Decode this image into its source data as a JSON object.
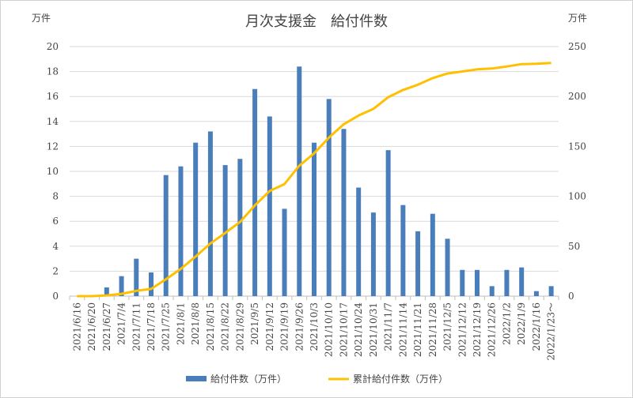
{
  "chart_data": {
    "type": "bar+line",
    "title": "月次支援金　給付件数",
    "left_unit": "万件",
    "right_unit": "万件",
    "categories": [
      "2021/6/16",
      "2021/6/20",
      "2021/6/27",
      "2021/7/4",
      "2021/7/11",
      "2021/7/18",
      "2021/7/25",
      "2021/8/1",
      "2021/8/8",
      "2021/8/15",
      "2021/8/22",
      "2021/8/29",
      "2021/9/5",
      "2021/9/12",
      "2021/9/19",
      "2021/9/26",
      "2021/10/3",
      "2021/10/10",
      "2021/10/17",
      "2021/10/24",
      "2021/10/31",
      "2021/11/7",
      "2021/11/14",
      "2021/11/21",
      "2021/11/28",
      "2021/12/5",
      "2021/12/12",
      "2021/12/19",
      "2021/12/26",
      "2022/1/2",
      "2022/1/9",
      "2022/1/16",
      "2022/1/23～"
    ],
    "series": [
      {
        "name": "給付件数（万件）",
        "type": "bar",
        "axis": "left",
        "color": "#4a7ebb",
        "values": [
          0,
          0,
          0.7,
          1.6,
          3.0,
          1.9,
          9.7,
          10.4,
          12.3,
          13.2,
          10.5,
          11.0,
          16.6,
          14.4,
          7.0,
          18.4,
          12.3,
          15.8,
          13.4,
          8.7,
          6.7,
          11.7,
          7.3,
          5.2,
          6.6,
          4.6,
          2.1,
          2.1,
          0.8,
          2.1,
          2.3,
          0.4,
          0.8
        ]
      },
      {
        "name": "累計給付件数（万件）",
        "type": "line",
        "axis": "right",
        "color": "#ffc000",
        "values": [
          0,
          0,
          0.7,
          2.3,
          5.3,
          7.2,
          16.9,
          27.3,
          39.6,
          52.8,
          63.3,
          74.3,
          90.9,
          105.3,
          112.3,
          130.7,
          143.0,
          158.8,
          172.2,
          180.9,
          187.6,
          199.3,
          206.6,
          211.8,
          218.4,
          223.0,
          225.1,
          227.2,
          228.0,
          230.1,
          232.4,
          232.8,
          233.6
        ]
      }
    ],
    "left_axis": {
      "min": 0,
      "max": 20,
      "step": 2,
      "ticks": [
        "0",
        "2",
        "4",
        "6",
        "8",
        "10",
        "12",
        "14",
        "16",
        "18",
        "20"
      ]
    },
    "right_axis": {
      "min": 0,
      "max": 250,
      "step": 50,
      "ticks": [
        "0",
        "50",
        "100",
        "150",
        "200",
        "250"
      ]
    },
    "grid": true,
    "legend_position": "bottom"
  }
}
